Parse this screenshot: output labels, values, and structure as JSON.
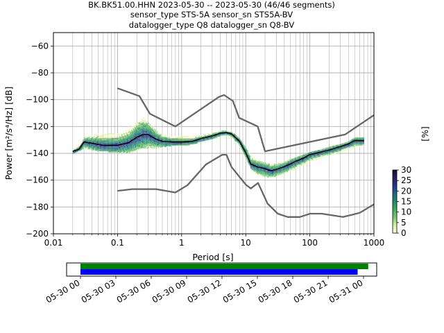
{
  "title": {
    "line1": "BK.BK51.00.HHN   2023-05-30 -- 2023-05-30  (46/46 segments)",
    "line2": "sensor_type STS-5A sensor_sn STS5A-BV",
    "line3": "datalogger_type Q8 datalogger_sn Q8-BV"
  },
  "chart_data": [
    {
      "type": "heatmap",
      "xlabel": "Period [s]",
      "ylabel": "Power [m²/s⁴/Hz] [dB]",
      "xscale": "log",
      "xlim": [
        0.01,
        1000
      ],
      "ylim": [
        -200,
        -50
      ],
      "x_ticks": [
        0.01,
        0.1,
        1,
        10,
        100,
        1000
      ],
      "x_tick_labels": [
        "0.01",
        "0.1",
        "1",
        "10",
        "100",
        "1000"
      ],
      "y_ticks": [
        -200,
        -180,
        -160,
        -140,
        -120,
        -100,
        -80,
        -60
      ],
      "y_tick_labels": [
        "−200",
        "−180",
        "−160",
        "−140",
        "−120",
        "−100",
        "−80",
        "−60"
      ],
      "grid": true,
      "colorbar": {
        "label": "[%]",
        "range": [
          0,
          30
        ],
        "ticks": [
          0,
          5,
          10,
          15,
          20,
          25,
          30
        ],
        "tick_labels": [
          "0",
          "5",
          "10",
          "15",
          "20",
          "25",
          "30"
        ],
        "colormap": [
          "#ffffe0",
          "#d9f0a3",
          "#78c679",
          "#41ab5d",
          "#238b6b",
          "#1d6a78",
          "#253494",
          "#2d1e5c",
          "#1a0b3a"
        ]
      },
      "series": [
        {
          "role": "noise-model-high",
          "color": "#666666",
          "x": [
            0.1,
            0.22,
            0.32,
            0.8,
            3.8,
            4.6,
            6.3,
            7.9,
            15.4,
            20,
            354.8,
            1000
          ],
          "y": [
            -91.5,
            -97.4,
            -110.5,
            -120,
            -98.0,
            -96.5,
            -101,
            -113.5,
            -120,
            -138.5,
            -126,
            -111.5
          ]
        },
        {
          "role": "noise-model-low",
          "color": "#666666",
          "x": [
            0.1,
            0.17,
            0.4,
            0.8,
            1.24,
            2.4,
            4.3,
            5.0,
            6.0,
            10.0,
            12.0,
            15.6,
            21.9,
            31.6,
            45.0,
            70.0,
            101,
            154,
            328,
            600,
            1000
          ],
          "y": [
            -168,
            -166.7,
            -166.7,
            -169.2,
            -163.7,
            -148.3,
            -141.1,
            -141.1,
            -150.2,
            -163.3,
            -166.2,
            -162.1,
            -177.5,
            -185.0,
            -187.5,
            -187.5,
            -185.0,
            -185.0,
            -187.5,
            -184.4,
            -178.0
          ]
        },
        {
          "role": "mode",
          "color": "#000000",
          "x": [
            0.02,
            0.025,
            0.03,
            0.04,
            0.06,
            0.1,
            0.15,
            0.2,
            0.25,
            0.3,
            0.4,
            0.5,
            0.7,
            1,
            1.5,
            2,
            3,
            4,
            5,
            6,
            8,
            10,
            12,
            15,
            20,
            25,
            30,
            40,
            60,
            80,
            100,
            150,
            200,
            300,
            400,
            500,
            700
          ],
          "y": [
            -138.5,
            -137,
            -131.5,
            -132.5,
            -134,
            -134,
            -132,
            -128,
            -126,
            -126,
            -129.5,
            -131,
            -131.5,
            -131.5,
            -131,
            -129,
            -127,
            -125,
            -124.5,
            -125.5,
            -131,
            -139.5,
            -148,
            -150,
            -151.5,
            -153,
            -152,
            -150,
            -146,
            -143.5,
            -141,
            -139,
            -137.5,
            -135,
            -133,
            -130.5,
            -130.5
          ]
        }
      ],
      "density_bands": [
        {
          "x": [
            0.02,
            0.03,
            0.05,
            0.1,
            0.15,
            0.2,
            0.25,
            0.3,
            0.4,
            0.5,
            0.7,
            1,
            1.5,
            2,
            3,
            4,
            5,
            6,
            8,
            10,
            12,
            15,
            20,
            30,
            40,
            60,
            100,
            150,
            200,
            300,
            400,
            500,
            700
          ],
          "y_top": [
            -137,
            -128,
            -125,
            -125,
            -122,
            -116,
            -113,
            -117,
            -123,
            -126,
            -127,
            -127,
            -127,
            -126,
            -124,
            -123,
            -123,
            -123.5,
            -129,
            -136,
            -141,
            -145,
            -147,
            -148,
            -146,
            -143,
            -139,
            -137,
            -135,
            -133,
            -131,
            -128,
            -128
          ],
          "y_bottom": [
            -140,
            -136,
            -138,
            -139,
            -139,
            -137,
            -136,
            -136,
            -136,
            -135,
            -134,
            -134,
            -133,
            -131,
            -129,
            -127,
            -126,
            -128,
            -135,
            -145,
            -151,
            -155,
            -158,
            -157,
            -155,
            -151,
            -146,
            -143,
            -141,
            -139,
            -137,
            -135,
            -134
          ]
        }
      ]
    },
    {
      "type": "timeline",
      "xlim": [
        "05-30 00",
        "05-31 00"
      ],
      "x_tick_labels": [
        "05-30 00",
        "05-30 03",
        "05-30 06",
        "05-30 09",
        "05-30 12",
        "05-30 15",
        "05-30 18",
        "05-30 21",
        "05-31 00"
      ],
      "bars": [
        {
          "color": "#008000",
          "start_hour": 0,
          "end_hour": 24.4
        },
        {
          "color": "#0000ff",
          "start_hour": 0,
          "end_hour": 23.5
        }
      ]
    }
  ]
}
